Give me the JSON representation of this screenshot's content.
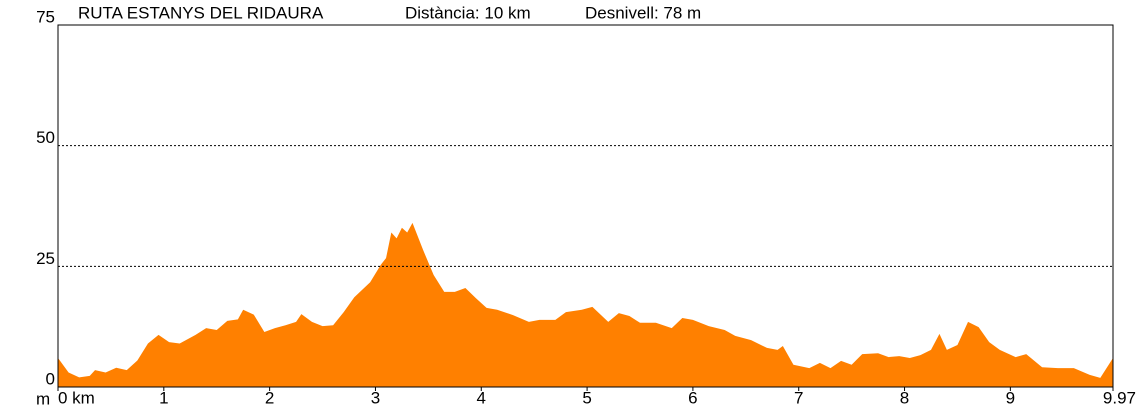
{
  "chart_data": {
    "type": "area",
    "title": "RUTA ESTANYS DEL RIDAURA",
    "subtitle": "Distància: 10 km",
    "annotation": "Desnivell: 78 m",
    "y_label": "m",
    "color": "#ff8000",
    "grid": true,
    "xlim": [
      0,
      9.97
    ],
    "ylim": [
      0,
      75
    ],
    "xticks": [
      {
        "value": 0,
        "label": "0 km"
      },
      1,
      2,
      3,
      4,
      5,
      6,
      7,
      8,
      9,
      9.97
    ],
    "yticks": [
      0,
      25,
      50,
      75
    ],
    "x": [
      0,
      0.1,
      0.2,
      0.3,
      0.35,
      0.45,
      0.55,
      0.65,
      0.75,
      0.85,
      0.95,
      1.05,
      1.15,
      1.3,
      1.4,
      1.5,
      1.6,
      1.7,
      1.75,
      1.85,
      1.95,
      2.05,
      2.15,
      2.25,
      2.3,
      2.4,
      2.5,
      2.6,
      2.7,
      2.8,
      2.95,
      3.05,
      3.1,
      3.15,
      3.2,
      3.25,
      3.3,
      3.35,
      3.45,
      3.55,
      3.65,
      3.75,
      3.85,
      3.95,
      4.05,
      4.15,
      4.3,
      4.45,
      4.55,
      4.7,
      4.8,
      4.95,
      5.05,
      5.2,
      5.3,
      5.4,
      5.5,
      5.65,
      5.8,
      5.9,
      6.0,
      6.15,
      6.3,
      6.4,
      6.55,
      6.7,
      6.8,
      6.85,
      6.95,
      7.1,
      7.2,
      7.3,
      7.4,
      7.5,
      7.6,
      7.75,
      7.85,
      7.95,
      8.05,
      8.15,
      8.25,
      8.33,
      8.4,
      8.5,
      8.6,
      8.7,
      8.8,
      8.9,
      9.05,
      9.15,
      9.3,
      9.45,
      9.6,
      9.75,
      9.85,
      9.97
    ],
    "values": [
      6,
      3,
      2,
      2.3,
      3.5,
      3,
      4,
      3.5,
      5.5,
      9,
      10.8,
      9.3,
      9,
      10.8,
      12.2,
      11.8,
      13.7,
      14,
      16,
      15,
      11.4,
      12.2,
      12.8,
      13.5,
      15.1,
      13.5,
      12.6,
      12.8,
      15.5,
      18.6,
      21.7,
      25.3,
      26.7,
      32,
      30.8,
      33,
      32,
      34,
      28.4,
      23.2,
      19.7,
      19.7,
      20.5,
      18.4,
      16.4,
      16,
      14.9,
      13.5,
      13.9,
      13.9,
      15.5,
      16,
      16.6,
      13.5,
      15.3,
      14.7,
      13.3,
      13.3,
      12.2,
      14.3,
      13.9,
      12.6,
      11.8,
      10.6,
      9.7,
      8.1,
      7.7,
      8.5,
      4.6,
      3.9,
      5,
      3.9,
      5.4,
      4.6,
      6.8,
      7,
      6.2,
      6.4,
      6,
      6.6,
      7.7,
      11,
      7.7,
      8.7,
      13.5,
      12.4,
      9.3,
      7.7,
      6.2,
      6.8,
      4.1,
      3.9,
      3.9,
      2.5,
      1.9,
      6
    ]
  }
}
